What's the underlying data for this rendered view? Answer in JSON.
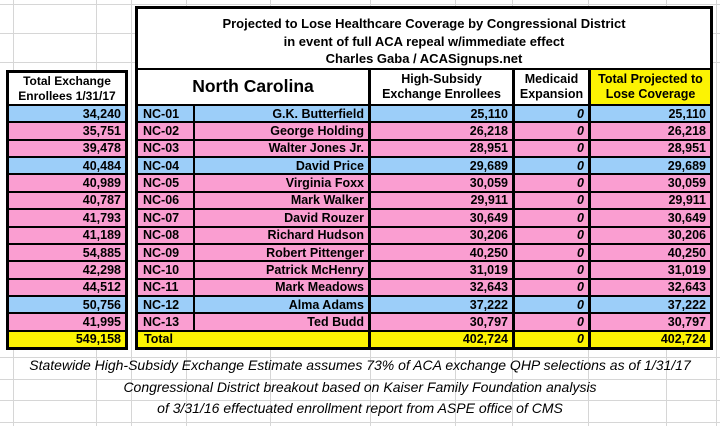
{
  "colors": {
    "blue": "#9CCEF9",
    "pink": "#FA9ED1",
    "yellow": "#FCF303",
    "grid": "#D6D6D6",
    "border": "#000000"
  },
  "title": {
    "line1": "Projected to Lose Healthcare Coverage by Congressional District",
    "line2": "in event of full ACA repeal w/immediate effect",
    "line3": "Charles Gaba / ACASignups.net"
  },
  "left_table": {
    "header": "Total Exchange Enrollees 1/31/17"
  },
  "columns": {
    "state": "North Carolina",
    "high_subsidy": "High-Subsidy Exchange Enrollees",
    "medicaid": "Medicaid Expansion",
    "total_projected": "Total Projected to Lose Coverage"
  },
  "rows": [
    {
      "district": "NC-01",
      "representative": "G.K. Butterfield",
      "exchange_enrollees": "34,240",
      "high_subsidy": "25,110",
      "medicaid": "0",
      "total": "25,110",
      "highlight": "blue"
    },
    {
      "district": "NC-02",
      "representative": "George Holding",
      "exchange_enrollees": "35,751",
      "high_subsidy": "26,218",
      "medicaid": "0",
      "total": "26,218",
      "highlight": "pink"
    },
    {
      "district": "NC-03",
      "representative": "Walter Jones Jr.",
      "exchange_enrollees": "39,478",
      "high_subsidy": "28,951",
      "medicaid": "0",
      "total": "28,951",
      "highlight": "pink"
    },
    {
      "district": "NC-04",
      "representative": "David Price",
      "exchange_enrollees": "40,484",
      "high_subsidy": "29,689",
      "medicaid": "0",
      "total": "29,689",
      "highlight": "blue"
    },
    {
      "district": "NC-05",
      "representative": "Virginia Foxx",
      "exchange_enrollees": "40,989",
      "high_subsidy": "30,059",
      "medicaid": "0",
      "total": "30,059",
      "highlight": "pink"
    },
    {
      "district": "NC-06",
      "representative": "Mark Walker",
      "exchange_enrollees": "40,787",
      "high_subsidy": "29,911",
      "medicaid": "0",
      "total": "29,911",
      "highlight": "pink"
    },
    {
      "district": "NC-07",
      "representative": "David Rouzer",
      "exchange_enrollees": "41,793",
      "high_subsidy": "30,649",
      "medicaid": "0",
      "total": "30,649",
      "highlight": "pink"
    },
    {
      "district": "NC-08",
      "representative": "Richard Hudson",
      "exchange_enrollees": "41,189",
      "high_subsidy": "30,206",
      "medicaid": "0",
      "total": "30,206",
      "highlight": "pink"
    },
    {
      "district": "NC-09",
      "representative": "Robert Pittenger",
      "exchange_enrollees": "54,885",
      "high_subsidy": "40,250",
      "medicaid": "0",
      "total": "40,250",
      "highlight": "pink"
    },
    {
      "district": "NC-10",
      "representative": "Patrick McHenry",
      "exchange_enrollees": "42,298",
      "high_subsidy": "31,019",
      "medicaid": "0",
      "total": "31,019",
      "highlight": "pink"
    },
    {
      "district": "NC-11",
      "representative": "Mark Meadows",
      "exchange_enrollees": "44,512",
      "high_subsidy": "32,643",
      "medicaid": "0",
      "total": "32,643",
      "highlight": "pink"
    },
    {
      "district": "NC-12",
      "representative": "Alma Adams",
      "exchange_enrollees": "50,756",
      "high_subsidy": "37,222",
      "medicaid": "0",
      "total": "37,222",
      "highlight": "blue"
    },
    {
      "district": "NC-13",
      "representative": "Ted Budd",
      "exchange_enrollees": "41,995",
      "high_subsidy": "30,797",
      "medicaid": "0",
      "total": "30,797",
      "highlight": "pink"
    }
  ],
  "totals": {
    "label": "Total",
    "exchange_enrollees": "549,158",
    "high_subsidy": "402,724",
    "medicaid": "0",
    "total": "402,724",
    "highlight": "yellow"
  },
  "footnote": {
    "line1": "Statewide High-Subsidy Exchange Estimate assumes 73% of ACA exchange QHP selections as of 1/31/17",
    "line2": "Congressional District breakout based on Kaiser Family Foundation analysis",
    "line3": "of 3/31/16 effectuated enrollment report from ASPE office of CMS"
  }
}
